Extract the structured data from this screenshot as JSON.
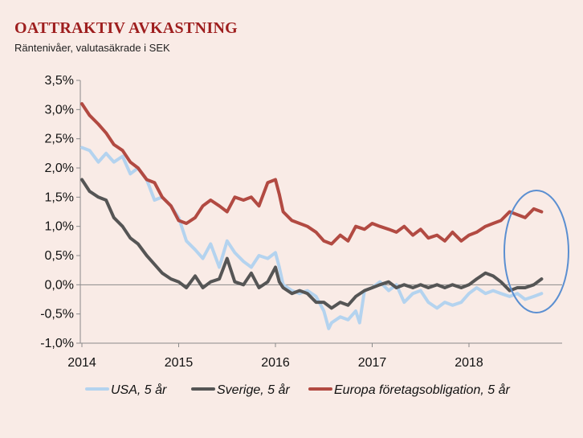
{
  "title": "OATTRAKTIV AVKASTNING",
  "subtitle": "Räntenivåer, valutasäkrade i SEK",
  "colors": {
    "background": "#f9ebe6",
    "usa": "#b4d3ef",
    "sverige": "#555555",
    "europa": "#b24a42",
    "circle": "#5b8fd1",
    "title": "#9e1e1e"
  },
  "chart_data": {
    "type": "line",
    "title": "OATTRAKTIV AVKASTNING",
    "subtitle": "Räntenivåer, valutasäkrade i SEK",
    "xlim": [
      2014,
      2018.9
    ],
    "ylim": [
      -1.0,
      3.5
    ],
    "x_ticks": [
      2014,
      2015,
      2016,
      2017,
      2018
    ],
    "x_tick_labels": [
      "2014",
      "2015",
      "2016",
      "2017",
      "2018"
    ],
    "y_ticks": [
      3.5,
      3.0,
      2.5,
      2.0,
      1.5,
      1.0,
      0.5,
      0.0,
      -0.5,
      -1.0
    ],
    "y_tick_labels": [
      "3,5%",
      "3,0%",
      "2,5%",
      "2,0%",
      "1,5%",
      "1,0%",
      "0,5%",
      "0,0%",
      "-0,5%",
      "-1,0%"
    ],
    "legend_position": "bottom",
    "grid": false,
    "series": [
      {
        "name": "USA, 5 år",
        "color": "#b4d3ef",
        "x": [
          2014.0,
          2014.08,
          2014.17,
          2014.25,
          2014.33,
          2014.42,
          2014.5,
          2014.58,
          2014.67,
          2014.75,
          2014.83,
          2014.92,
          2015.0,
          2015.08,
          2015.17,
          2015.25,
          2015.33,
          2015.42,
          2015.5,
          2015.58,
          2015.67,
          2015.75,
          2015.83,
          2015.92,
          2016.0,
          2016.04,
          2016.08,
          2016.17,
          2016.25,
          2016.33,
          2016.42,
          2016.5,
          2016.55,
          2016.58,
          2016.67,
          2016.75,
          2016.83,
          2016.87,
          2016.92,
          2017.0,
          2017.08,
          2017.17,
          2017.25,
          2017.33,
          2017.42,
          2017.5,
          2017.58,
          2017.67,
          2017.75,
          2017.83,
          2017.92,
          2018.0,
          2018.08,
          2018.17,
          2018.25,
          2018.33,
          2018.42,
          2018.5,
          2018.58,
          2018.67,
          2018.75
        ],
        "y": [
          2.35,
          2.3,
          2.1,
          2.25,
          2.1,
          2.2,
          1.9,
          2.0,
          1.8,
          1.45,
          1.5,
          1.35,
          1.15,
          0.75,
          0.6,
          0.45,
          0.7,
          0.3,
          0.75,
          0.55,
          0.4,
          0.3,
          0.5,
          0.45,
          0.55,
          0.3,
          0.0,
          -0.1,
          -0.15,
          -0.1,
          -0.2,
          -0.45,
          -0.75,
          -0.65,
          -0.55,
          -0.6,
          -0.45,
          -0.65,
          -0.1,
          -0.05,
          0.05,
          -0.1,
          0.0,
          -0.3,
          -0.15,
          -0.1,
          -0.3,
          -0.4,
          -0.3,
          -0.35,
          -0.3,
          -0.15,
          -0.05,
          -0.15,
          -0.1,
          -0.15,
          -0.2,
          -0.15,
          -0.25,
          -0.2,
          -0.15
        ]
      },
      {
        "name": "Sverige, 5 år",
        "color": "#555555",
        "x": [
          2014.0,
          2014.08,
          2014.17,
          2014.25,
          2014.33,
          2014.42,
          2014.5,
          2014.58,
          2014.67,
          2014.75,
          2014.83,
          2014.92,
          2015.0,
          2015.08,
          2015.17,
          2015.25,
          2015.33,
          2015.42,
          2015.5,
          2015.58,
          2015.67,
          2015.75,
          2015.83,
          2015.92,
          2016.0,
          2016.04,
          2016.08,
          2016.17,
          2016.25,
          2016.33,
          2016.42,
          2016.5,
          2016.58,
          2016.67,
          2016.75,
          2016.83,
          2016.92,
          2017.0,
          2017.08,
          2017.17,
          2017.25,
          2017.33,
          2017.42,
          2017.5,
          2017.58,
          2017.67,
          2017.75,
          2017.83,
          2017.92,
          2018.0,
          2018.08,
          2018.17,
          2018.25,
          2018.33,
          2018.42,
          2018.5,
          2018.58,
          2018.67,
          2018.75
        ],
        "y": [
          1.8,
          1.6,
          1.5,
          1.45,
          1.15,
          1.0,
          0.8,
          0.7,
          0.5,
          0.35,
          0.2,
          0.1,
          0.05,
          -0.05,
          0.15,
          -0.05,
          0.05,
          0.1,
          0.45,
          0.05,
          0.0,
          0.2,
          -0.05,
          0.05,
          0.3,
          0.05,
          -0.05,
          -0.15,
          -0.1,
          -0.15,
          -0.3,
          -0.3,
          -0.4,
          -0.3,
          -0.35,
          -0.2,
          -0.1,
          -0.05,
          0.0,
          0.05,
          -0.05,
          0.0,
          -0.05,
          0.0,
          -0.05,
          0.0,
          -0.05,
          0.0,
          -0.05,
          0.0,
          0.1,
          0.2,
          0.15,
          0.05,
          -0.1,
          -0.05,
          -0.05,
          0.0,
          0.1
        ]
      },
      {
        "name": "Europa företagsobligation, 5 år",
        "color": "#b24a42",
        "x": [
          2014.0,
          2014.08,
          2014.17,
          2014.25,
          2014.33,
          2014.42,
          2014.5,
          2014.58,
          2014.67,
          2014.75,
          2014.83,
          2014.92,
          2015.0,
          2015.08,
          2015.17,
          2015.25,
          2015.33,
          2015.42,
          2015.5,
          2015.58,
          2015.67,
          2015.75,
          2015.83,
          2015.92,
          2016.0,
          2016.04,
          2016.08,
          2016.17,
          2016.25,
          2016.33,
          2016.42,
          2016.5,
          2016.58,
          2016.67,
          2016.75,
          2016.83,
          2016.92,
          2017.0,
          2017.08,
          2017.17,
          2017.25,
          2017.33,
          2017.42,
          2017.5,
          2017.58,
          2017.67,
          2017.75,
          2017.83,
          2017.92,
          2018.0,
          2018.08,
          2018.17,
          2018.25,
          2018.33,
          2018.42,
          2018.5,
          2018.58,
          2018.67,
          2018.75
        ],
        "y": [
          3.1,
          2.9,
          2.75,
          2.6,
          2.4,
          2.3,
          2.1,
          2.0,
          1.8,
          1.75,
          1.5,
          1.35,
          1.1,
          1.05,
          1.15,
          1.35,
          1.45,
          1.35,
          1.25,
          1.5,
          1.45,
          1.5,
          1.35,
          1.75,
          1.8,
          1.55,
          1.25,
          1.1,
          1.05,
          1.0,
          0.9,
          0.75,
          0.7,
          0.85,
          0.75,
          1.0,
          0.95,
          1.05,
          1.0,
          0.95,
          0.9,
          1.0,
          0.85,
          0.95,
          0.8,
          0.85,
          0.75,
          0.9,
          0.75,
          0.85,
          0.9,
          1.0,
          1.05,
          1.1,
          1.25,
          1.2,
          1.15,
          1.3,
          1.25
        ]
      }
    ]
  }
}
